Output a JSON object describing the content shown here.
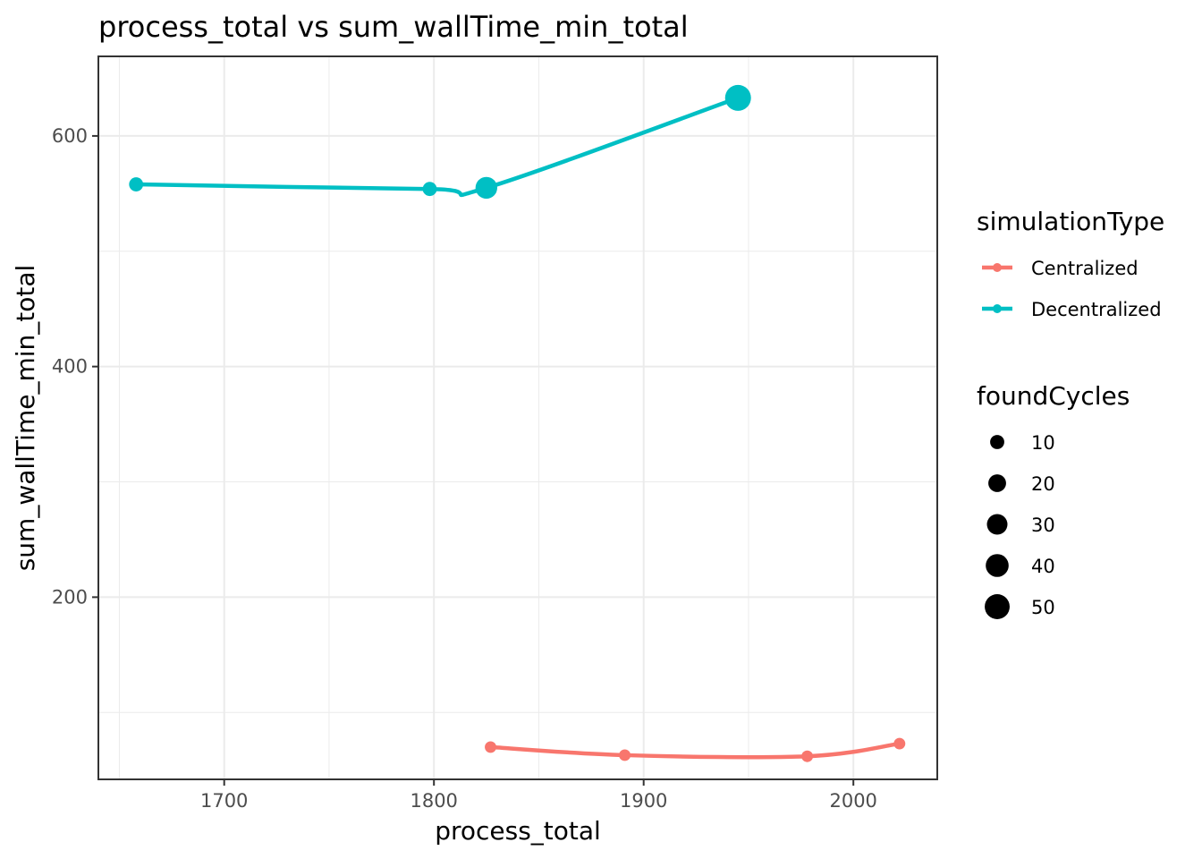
{
  "chart_data": {
    "type": "line",
    "title": "process_total  vs  sum_wallTime_min_total",
    "xlabel": "process_total",
    "ylabel": "sum_wallTime_min_total",
    "xlim": [
      1640,
      2040
    ],
    "ylim": [
      42,
      669
    ],
    "x_ticks": [
      1700,
      1800,
      1900,
      2000
    ],
    "y_ticks": [
      200,
      400,
      600
    ],
    "grid": true,
    "smoothed": true,
    "series": [
      {
        "name": "Centralized",
        "color": "#F8766D",
        "points": [
          {
            "x": 1827,
            "y": 70,
            "size": 5
          },
          {
            "x": 1891,
            "y": 63,
            "size": 5
          },
          {
            "x": 1978,
            "y": 62,
            "size": 5
          },
          {
            "x": 2022,
            "y": 73,
            "size": 5
          }
        ]
      },
      {
        "name": "Decentralized",
        "color": "#00BFC4",
        "points": [
          {
            "x": 1658,
            "y": 558,
            "size": 10
          },
          {
            "x": 1798,
            "y": 554,
            "size": 10
          },
          {
            "x": 1825,
            "y": 555,
            "size": 35
          },
          {
            "x": 1945,
            "y": 633,
            "size": 55
          }
        ]
      }
    ],
    "legend": {
      "position": "right",
      "color_title": "simulationType",
      "color_items": [
        "Centralized",
        "Decentralized"
      ],
      "size_title": "foundCycles",
      "size_items": [
        "10",
        "20",
        "30",
        "40",
        "50"
      ]
    }
  }
}
